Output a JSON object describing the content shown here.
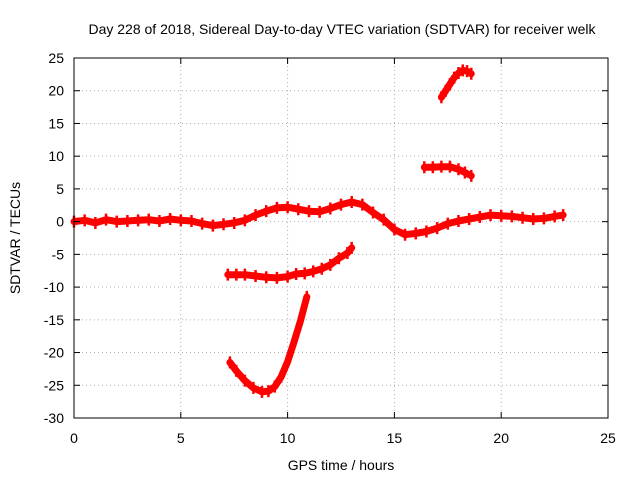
{
  "chart_data": {
    "type": "scatter",
    "title": "Day 228 of 2018, Sidereal Day-to-day VTEC variation (SDTVAR) for receiver welk",
    "xlabel": "GPS time / hours",
    "ylabel": "SDTVAR / TECUs",
    "xlim": [
      0,
      25
    ],
    "ylim": [
      -30,
      25
    ],
    "xticks": [
      0,
      5,
      10,
      15,
      20,
      25
    ],
    "yticks": [
      -30,
      -25,
      -20,
      -15,
      -10,
      -5,
      0,
      5,
      10,
      15,
      20,
      25
    ],
    "grid": true,
    "legend": "none",
    "series": [
      {
        "name": "main-band",
        "points": [
          [
            0.0,
            0.0
          ],
          [
            0.5,
            0.2
          ],
          [
            1.0,
            -0.2
          ],
          [
            1.5,
            0.3
          ],
          [
            2.0,
            0.0
          ],
          [
            2.5,
            0.1
          ],
          [
            3.0,
            0.2
          ],
          [
            3.5,
            0.3
          ],
          [
            4.0,
            0.1
          ],
          [
            4.5,
            0.4
          ],
          [
            5.0,
            0.2
          ],
          [
            5.5,
            0.1
          ],
          [
            6.0,
            -0.3
          ],
          [
            6.5,
            -0.6
          ],
          [
            7.0,
            -0.4
          ],
          [
            7.5,
            -0.2
          ],
          [
            8.0,
            0.2
          ],
          [
            8.5,
            1.0
          ],
          [
            9.0,
            1.6
          ],
          [
            9.5,
            2.1
          ],
          [
            10.0,
            2.2
          ],
          [
            10.5,
            1.9
          ],
          [
            11.0,
            1.6
          ],
          [
            11.5,
            1.5
          ],
          [
            12.0,
            2.0
          ],
          [
            12.5,
            2.6
          ],
          [
            13.0,
            3.0
          ],
          [
            13.5,
            2.6
          ],
          [
            14.0,
            1.4
          ],
          [
            14.5,
            0.3
          ],
          [
            15.0,
            -1.2
          ],
          [
            15.5,
            -2.0
          ],
          [
            16.0,
            -1.8
          ],
          [
            16.5,
            -1.5
          ],
          [
            17.0,
            -1.0
          ],
          [
            17.5,
            -0.3
          ],
          [
            18.0,
            0.1
          ],
          [
            18.5,
            0.4
          ],
          [
            19.0,
            0.7
          ],
          [
            19.5,
            1.0
          ],
          [
            20.0,
            0.9
          ],
          [
            20.5,
            0.8
          ],
          [
            21.0,
            0.6
          ],
          [
            21.5,
            0.4
          ],
          [
            22.0,
            0.5
          ],
          [
            22.5,
            0.8
          ],
          [
            22.9,
            1.0
          ]
        ]
      },
      {
        "name": "upper-arc",
        "points": [
          [
            17.2,
            19.0
          ],
          [
            17.4,
            20.0
          ],
          [
            17.6,
            21.0
          ],
          [
            17.8,
            22.0
          ],
          [
            18.0,
            22.7
          ],
          [
            18.2,
            23.1
          ],
          [
            18.4,
            23.0
          ],
          [
            18.6,
            22.6
          ]
        ]
      },
      {
        "name": "plus-8-segment",
        "points": [
          [
            16.4,
            8.3
          ],
          [
            16.8,
            8.3
          ],
          [
            17.2,
            8.4
          ],
          [
            17.6,
            8.4
          ],
          [
            18.0,
            8.0
          ],
          [
            18.3,
            7.5
          ],
          [
            18.6,
            7.0
          ]
        ]
      },
      {
        "name": "minus-8-segment",
        "points": [
          [
            7.2,
            -8.1
          ],
          [
            7.6,
            -8.1
          ],
          [
            8.0,
            -8.1
          ],
          [
            8.5,
            -8.3
          ],
          [
            9.0,
            -8.5
          ],
          [
            9.5,
            -8.6
          ],
          [
            10.0,
            -8.4
          ],
          [
            10.4,
            -8.0
          ],
          [
            10.8,
            -7.9
          ],
          [
            11.2,
            -7.6
          ],
          [
            11.6,
            -7.2
          ],
          [
            12.0,
            -6.6
          ],
          [
            12.4,
            -5.6
          ],
          [
            12.8,
            -4.8
          ],
          [
            13.0,
            -4.0
          ]
        ]
      },
      {
        "name": "deep-dip",
        "points": [
          [
            7.3,
            -21.5
          ],
          [
            7.6,
            -22.8
          ],
          [
            8.0,
            -24.3
          ],
          [
            8.4,
            -25.4
          ],
          [
            8.8,
            -26.0
          ],
          [
            9.1,
            -25.9
          ],
          [
            9.4,
            -25.2
          ],
          [
            9.7,
            -23.7
          ],
          [
            10.0,
            -21.4
          ],
          [
            10.3,
            -18.4
          ],
          [
            10.6,
            -15.2
          ],
          [
            10.9,
            -11.5
          ]
        ]
      }
    ],
    "colors": {
      "series": "#ff0000",
      "grid": "#b0b0b0",
      "axis": "#000000",
      "background": "#ffffff"
    }
  }
}
